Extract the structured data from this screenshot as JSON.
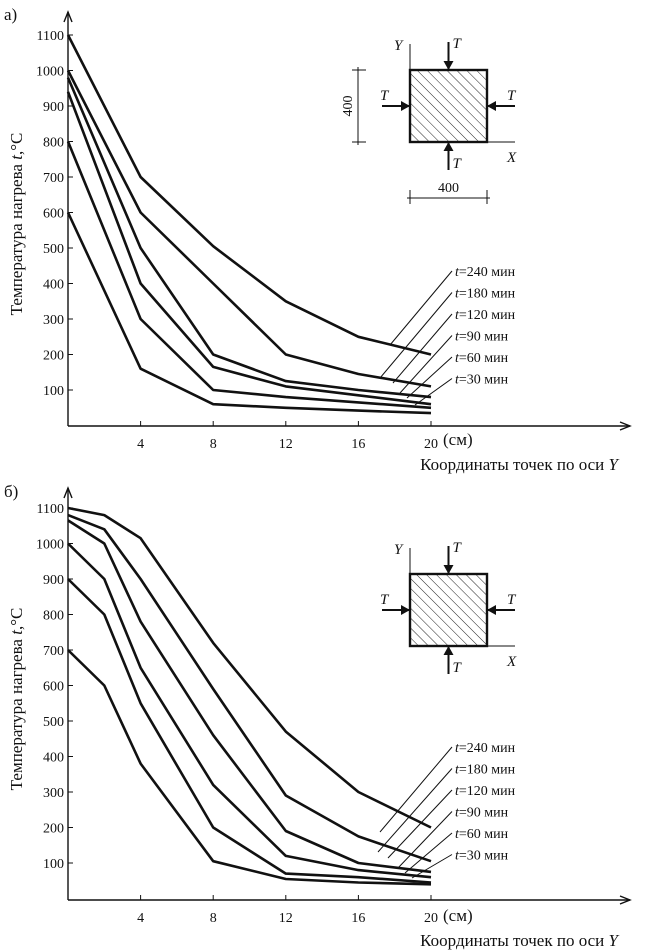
{
  "chart_data": [
    {
      "type": "line",
      "panel_label": "а)",
      "ylabel_prefix": "Температура нагрева ",
      "ylabel_var": "t",
      "ylabel_unit": ",°C",
      "xlabel_prefix": "Координаты точек по оси ",
      "xlabel_var": "Y",
      "x_unit_label": "(см)",
      "x_ticks": [
        4,
        8,
        12,
        16,
        20
      ],
      "y_ticks": [
        100,
        200,
        300,
        400,
        500,
        600,
        700,
        800,
        900,
        1000,
        1100
      ],
      "xlim": [
        0,
        30
      ],
      "ylim": [
        0,
        1100
      ],
      "series": [
        {
          "name": "240 мин",
          "x": [
            0,
            4,
            8,
            12,
            16,
            20
          ],
          "y": [
            1100,
            700,
            505,
            350,
            250,
            200
          ]
        },
        {
          "name": "180 мин",
          "x": [
            0,
            4,
            8,
            12,
            16,
            20
          ],
          "y": [
            1000,
            600,
            400,
            200,
            145,
            110
          ]
        },
        {
          "name": "120 мин",
          "x": [
            0,
            4,
            8,
            12,
            16,
            20
          ],
          "y": [
            980,
            500,
            200,
            125,
            100,
            80
          ]
        },
        {
          "name": "90 мин",
          "x": [
            0,
            4,
            8,
            12,
            16,
            20
          ],
          "y": [
            940,
            400,
            165,
            110,
            85,
            60
          ]
        },
        {
          "name": "60 мин",
          "x": [
            0,
            4,
            8,
            12,
            16,
            20
          ],
          "y": [
            800,
            300,
            100,
            80,
            65,
            50
          ]
        },
        {
          "name": "30 мин",
          "x": [
            0,
            4,
            8,
            12,
            16,
            20
          ],
          "y": [
            600,
            160,
            60,
            50,
            42,
            35
          ]
        }
      ],
      "legend_var": "t",
      "inset": {
        "label_y": "Y",
        "label_x": "X",
        "label_t": "T",
        "dim_v": "400",
        "dim_h": "400"
      }
    },
    {
      "type": "line",
      "panel_label": "б)",
      "ylabel_prefix": "Температура нагрева ",
      "ylabel_var": "t",
      "ylabel_unit": ",°C",
      "xlabel_prefix": "Координаты точек по оси ",
      "xlabel_var": "Y",
      "x_unit_label": "(см)",
      "x_ticks": [
        4,
        8,
        12,
        16,
        20
      ],
      "y_ticks": [
        100,
        200,
        300,
        400,
        500,
        600,
        700,
        800,
        900,
        1000,
        1100
      ],
      "xlim": [
        0,
        30
      ],
      "ylim": [
        0,
        1100
      ],
      "series": [
        {
          "name": "240 мин",
          "x": [
            0,
            2,
            4,
            8,
            12,
            16,
            20
          ],
          "y": [
            1100,
            1080,
            1015,
            720,
            470,
            300,
            200
          ]
        },
        {
          "name": "180 мин",
          "x": [
            0,
            2,
            4,
            8,
            12,
            16,
            20
          ],
          "y": [
            1080,
            1040,
            900,
            590,
            290,
            175,
            105
          ]
        },
        {
          "name": "120 мин",
          "x": [
            0,
            2,
            4,
            8,
            12,
            16,
            20
          ],
          "y": [
            1065,
            1000,
            780,
            460,
            190,
            100,
            75
          ]
        },
        {
          "name": "90 мин",
          "x": [
            0,
            2,
            4,
            8,
            12,
            16,
            20
          ],
          "y": [
            1000,
            900,
            650,
            320,
            120,
            80,
            60
          ]
        },
        {
          "name": "60 мин",
          "x": [
            0,
            2,
            4,
            8,
            12,
            16,
            20
          ],
          "y": [
            900,
            800,
            550,
            200,
            70,
            60,
            45
          ]
        },
        {
          "name": "30 мин",
          "x": [
            0,
            2,
            4,
            8,
            12,
            16,
            20
          ],
          "y": [
            700,
            600,
            380,
            105,
            55,
            45,
            40
          ]
        }
      ],
      "legend_var": "t",
      "inset": {
        "label_y": "Y",
        "label_x": "X",
        "label_t": "T"
      }
    }
  ]
}
